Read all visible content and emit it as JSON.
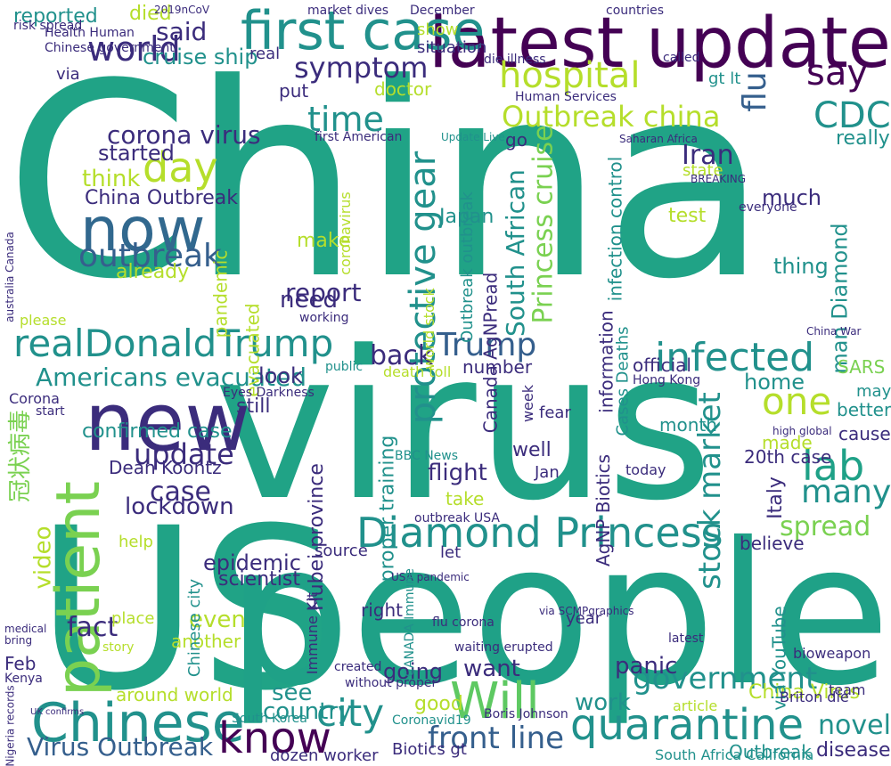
{
  "words": [
    {
      "text": "China",
      "color": "green"
    },
    {
      "text": "virus",
      "color": "green"
    },
    {
      "text": "US",
      "color": "green"
    },
    {
      "text": "people",
      "color": "sea"
    },
    {
      "text": "latest update",
      "color": "purple"
    },
    {
      "text": "new",
      "color": "indigo"
    },
    {
      "text": "first case",
      "color": "teal"
    },
    {
      "text": "now",
      "color": "blue"
    },
    {
      "text": "Chinese",
      "color": "teal"
    },
    {
      "text": "realDonaldTrump",
      "color": "teal"
    },
    {
      "text": "Diamond Princess",
      "color": "teal"
    },
    {
      "text": "patient",
      "color": "lime"
    },
    {
      "text": "Will",
      "color": "lgreen"
    },
    {
      "text": "know",
      "color": "purple"
    },
    {
      "text": "quarantine",
      "color": "teal"
    },
    {
      "text": "hospital",
      "color": "yg"
    },
    {
      "text": "say",
      "color": "purple"
    },
    {
      "text": "world",
      "color": "indigo"
    },
    {
      "text": "outbreak",
      "color": "navy"
    },
    {
      "text": "infected",
      "color": "teal"
    },
    {
      "text": "Trump",
      "color": "navy"
    },
    {
      "text": "one",
      "color": "yg"
    },
    {
      "text": "lab",
      "color": "sea"
    },
    {
      "text": "many",
      "color": "teal"
    },
    {
      "text": "city",
      "color": "teal"
    },
    {
      "text": "government",
      "color": "teal"
    },
    {
      "text": "front line",
      "color": "navy"
    },
    {
      "text": "CDC",
      "color": "teal"
    },
    {
      "text": "time",
      "color": "teal"
    },
    {
      "text": "day",
      "color": "yg"
    },
    {
      "text": "symptom",
      "color": "indigo"
    },
    {
      "text": "Outbreak china",
      "color": "yg"
    },
    {
      "text": "protective gear",
      "color": "teal"
    },
    {
      "text": "South African",
      "color": "teal"
    },
    {
      "text": "Princess cruise",
      "color": "lime"
    },
    {
      "text": "stock market",
      "color": "teal"
    },
    {
      "text": "spread",
      "color": "lime"
    },
    {
      "text": "update",
      "color": "indigo"
    },
    {
      "text": "report",
      "color": "indigo"
    },
    {
      "text": "back",
      "color": "indigo"
    },
    {
      "text": "Americans evacuated",
      "color": "teal"
    },
    {
      "text": "Virus Outbreak",
      "color": "navy"
    },
    {
      "text": "China Virus",
      "color": "yg"
    },
    {
      "text": "novel",
      "color": "teal"
    },
    {
      "text": "case",
      "color": "indigo"
    },
    {
      "text": "lockdown",
      "color": "indigo"
    },
    {
      "text": "flight",
      "color": "indigo"
    },
    {
      "text": "panic",
      "color": "indigo"
    },
    {
      "text": "want",
      "color": "indigo"
    },
    {
      "text": "going",
      "color": "indigo"
    },
    {
      "text": "see",
      "color": "teal"
    },
    {
      "text": "country",
      "color": "teal"
    },
    {
      "text": "good",
      "color": "yg"
    },
    {
      "text": "work",
      "color": "teal"
    },
    {
      "text": "Iran",
      "color": "indigo"
    },
    {
      "text": "flu",
      "color": "navy"
    },
    {
      "text": "said",
      "color": "indigo"
    },
    {
      "text": "died",
      "color": "yg"
    },
    {
      "text": "reported",
      "color": "teal"
    },
    {
      "text": "cruise ship",
      "color": "teal"
    },
    {
      "text": "corona virus",
      "color": "indigo"
    },
    {
      "text": "started",
      "color": "indigo"
    },
    {
      "text": "think",
      "color": "yg"
    },
    {
      "text": "China Outbreak",
      "color": "indigo"
    },
    {
      "text": "video",
      "color": "yg"
    },
    {
      "text": "confirmed case",
      "color": "teal"
    },
    {
      "text": "Dean Koontz",
      "color": "indigo"
    },
    {
      "text": "epidemic",
      "color": "indigo"
    },
    {
      "text": "scientist",
      "color": "indigo"
    },
    {
      "text": "even",
      "color": "yg"
    },
    {
      "text": "another",
      "color": "yg"
    },
    {
      "text": "fact",
      "color": "indigo"
    },
    {
      "text": "Feb",
      "color": "indigo"
    },
    {
      "text": "around world",
      "color": "yg"
    },
    {
      "text": "make",
      "color": "yg"
    },
    {
      "text": "need",
      "color": "indigo"
    },
    {
      "text": "already",
      "color": "yg"
    },
    {
      "text": "really",
      "color": "teal"
    },
    {
      "text": "test",
      "color": "yg"
    },
    {
      "text": "much",
      "color": "indigo"
    },
    {
      "text": "thing",
      "color": "teal"
    },
    {
      "text": "infection control",
      "color": "teal"
    },
    {
      "text": "man Diamond",
      "color": "teal"
    },
    {
      "text": "SARS",
      "color": "lime"
    },
    {
      "text": "home",
      "color": "teal"
    },
    {
      "text": "better",
      "color": "teal"
    },
    {
      "text": "cause",
      "color": "indigo"
    },
    {
      "text": "made",
      "color": "yg"
    },
    {
      "text": "month",
      "color": "teal"
    },
    {
      "text": "20th case",
      "color": "indigo"
    },
    {
      "text": "believe",
      "color": "indigo"
    },
    {
      "text": "look",
      "color": "indigo"
    },
    {
      "text": "still",
      "color": "indigo"
    },
    {
      "text": "number",
      "color": "indigo"
    },
    {
      "text": "official",
      "color": "indigo"
    },
    {
      "text": "well",
      "color": "indigo"
    },
    {
      "text": "Italy",
      "color": "indigo"
    },
    {
      "text": "Japan",
      "color": "teal"
    },
    {
      "text": "go",
      "color": "indigo"
    },
    {
      "text": "Hubei province",
      "color": "indigo"
    },
    {
      "text": "proper training",
      "color": "teal"
    },
    {
      "text": "Canada AgNPread",
      "color": "indigo"
    },
    {
      "text": "AgNP Biotics",
      "color": "indigo"
    },
    {
      "text": "Cases Deaths",
      "color": "teal"
    },
    {
      "text": "information",
      "color": "indigo"
    },
    {
      "text": "Outbreak outbreak",
      "color": "teal"
    },
    {
      "text": "world stock",
      "color": "yg"
    },
    {
      "text": "pandemic",
      "color": "yg"
    },
    {
      "text": "evacuated",
      "color": "yg"
    },
    {
      "text": "coronavirus",
      "color": "yg"
    },
    {
      "text": "via YouTube",
      "color": "teal"
    },
    {
      "text": "Chinese city",
      "color": "teal"
    },
    {
      "text": "Immune Kit",
      "color": "indigo"
    },
    {
      "text": "Outbreak",
      "color": "teal"
    },
    {
      "text": "disease",
      "color": "indigo"
    },
    {
      "text": "Biotics gt",
      "color": "indigo"
    },
    {
      "text": "dozen worker",
      "color": "indigo"
    },
    {
      "text": "help",
      "color": "yg"
    },
    {
      "text": "right",
      "color": "indigo"
    },
    {
      "text": "place",
      "color": "yg"
    },
    {
      "text": "year",
      "color": "indigo"
    },
    {
      "text": "let",
      "color": "indigo"
    },
    {
      "text": "source",
      "color": "indigo"
    },
    {
      "text": "show",
      "color": "yg"
    },
    {
      "text": "real",
      "color": "indigo"
    },
    {
      "text": "situation",
      "color": "indigo"
    },
    {
      "text": "via",
      "color": "indigo"
    },
    {
      "text": "doctor",
      "color": "yg"
    },
    {
      "text": "gt lt",
      "color": "teal"
    },
    {
      "text": "冠状病毒",
      "color": "lime"
    },
    {
      "text": "Corona",
      "color": "indigo"
    },
    {
      "text": "Coronavid19",
      "color": "teal"
    },
    {
      "text": "South Africa California",
      "color": "teal"
    },
    {
      "text": "Eyes Darkness",
      "color": "indigo"
    },
    {
      "text": "death toll",
      "color": "yg"
    },
    {
      "text": "may",
      "color": "teal"
    },
    {
      "text": "Briton die",
      "color": "indigo"
    },
    {
      "text": "team",
      "color": "indigo"
    },
    {
      "text": "article",
      "color": "yg"
    },
    {
      "text": "bioweapon",
      "color": "indigo"
    },
    {
      "text": "Kenya",
      "color": "indigo"
    },
    {
      "text": "australia Canada",
      "color": "indigo"
    },
    {
      "text": "latest",
      "color": "indigo"
    },
    {
      "text": "medical",
      "color": "indigo"
    },
    {
      "text": "start",
      "color": "indigo"
    },
    {
      "text": "week",
      "color": "indigo"
    },
    {
      "text": "Jan",
      "color": "indigo"
    },
    {
      "text": "fear",
      "color": "indigo"
    },
    {
      "text": "today",
      "color": "indigo"
    },
    {
      "text": "take",
      "color": "yg"
    },
    {
      "text": "BBC News",
      "color": "teal"
    },
    {
      "text": "Hong Kong",
      "color": "indigo"
    },
    {
      "text": "public",
      "color": "teal"
    },
    {
      "text": "Health Human",
      "color": "indigo"
    },
    {
      "text": "working",
      "color": "indigo"
    },
    {
      "text": "2019nCoV",
      "color": "indigo"
    },
    {
      "text": "die illness",
      "color": "indigo"
    },
    {
      "text": "market dives",
      "color": "indigo"
    },
    {
      "text": "Chinese government",
      "color": "indigo"
    },
    {
      "text": "first American",
      "color": "indigo"
    },
    {
      "text": "Human Services",
      "color": "indigo"
    },
    {
      "text": "December",
      "color": "indigo"
    },
    {
      "text": "countries",
      "color": "indigo"
    },
    {
      "text": "called",
      "color": "indigo"
    },
    {
      "text": "state",
      "color": "yg"
    },
    {
      "text": "everyone",
      "color": "indigo"
    },
    {
      "text": "Update Live",
      "color": "teal"
    },
    {
      "text": "Saharan Africa",
      "color": "indigo"
    },
    {
      "text": "put",
      "color": "indigo"
    },
    {
      "text": "please",
      "color": "yg"
    },
    {
      "text": "via SCMPgraphics",
      "color": "indigo"
    },
    {
      "text": "flu corona",
      "color": "indigo"
    },
    {
      "text": "waiting erupted",
      "color": "indigo"
    },
    {
      "text": "without proper",
      "color": "indigo"
    },
    {
      "text": "created",
      "color": "indigo"
    },
    {
      "text": "story",
      "color": "yg"
    },
    {
      "text": "bring",
      "color": "indigo"
    },
    {
      "text": "high global",
      "color": "indigo"
    },
    {
      "text": "UK confirms",
      "color": "indigo"
    },
    {
      "text": "South Korea",
      "color": "teal"
    },
    {
      "text": "Boris Johnson",
      "color": "indigo"
    },
    {
      "text": "USA pandemic",
      "color": "indigo"
    },
    {
      "text": "CANADA Immune",
      "color": "teal"
    },
    {
      "text": "Nigeria records",
      "color": "indigo"
    },
    {
      "text": "outbreak USA",
      "color": "indigo"
    },
    {
      "text": "risk spread",
      "color": "indigo"
    },
    {
      "text": "BREAKING",
      "color": "indigo"
    },
    {
      "text": "China War",
      "color": "indigo"
    }
  ]
}
